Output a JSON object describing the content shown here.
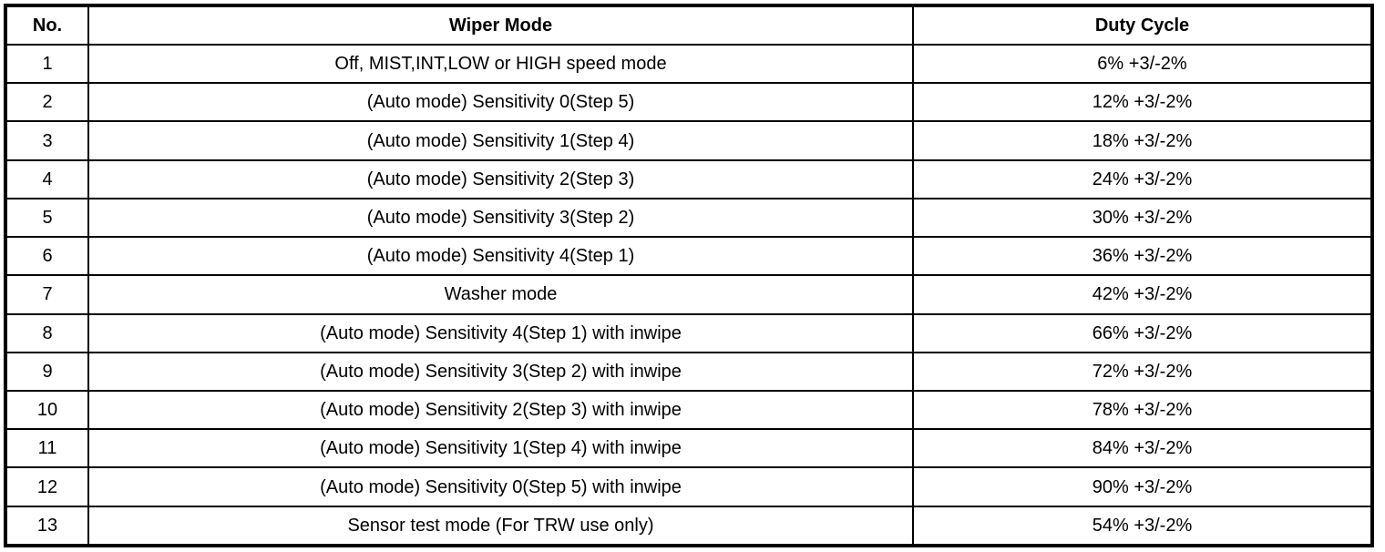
{
  "headers": {
    "no": "No.",
    "mode": "Wiper Mode",
    "duty": "Duty Cycle"
  },
  "rows": [
    {
      "no": "1",
      "mode": "Off, MIST,INT,LOW or HIGH speed mode",
      "duty": "6% +3/-2%"
    },
    {
      "no": "2",
      "mode": "(Auto mode) Sensitivity 0(Step 5)",
      "duty": "12% +3/-2%"
    },
    {
      "no": "3",
      "mode": "(Auto mode) Sensitivity 1(Step 4)",
      "duty": "18% +3/-2%"
    },
    {
      "no": "4",
      "mode": "(Auto mode) Sensitivity 2(Step 3)",
      "duty": "24% +3/-2%"
    },
    {
      "no": "5",
      "mode": "(Auto mode) Sensitivity 3(Step 2)",
      "duty": "30% +3/-2%"
    },
    {
      "no": "6",
      "mode": "(Auto mode) Sensitivity 4(Step 1)",
      "duty": "36% +3/-2%"
    },
    {
      "no": "7",
      "mode": "Washer mode",
      "duty": "42% +3/-2%"
    },
    {
      "no": "8",
      "mode": "(Auto mode) Sensitivity 4(Step 1) with inwipe",
      "duty": "66% +3/-2%"
    },
    {
      "no": "9",
      "mode": "(Auto mode) Sensitivity 3(Step 2) with inwipe",
      "duty": "72% +3/-2%"
    },
    {
      "no": "10",
      "mode": "(Auto mode) Sensitivity 2(Step 3) with inwipe",
      "duty": "78% +3/-2%"
    },
    {
      "no": "11",
      "mode": "(Auto mode) Sensitivity 1(Step 4) with inwipe",
      "duty": "84% +3/-2%"
    },
    {
      "no": "12",
      "mode": "(Auto mode) Sensitivity 0(Step 5) with inwipe",
      "duty": "90% +3/-2%"
    },
    {
      "no": "13",
      "mode": "Sensor test mode (For TRW use only)",
      "duty": "54% +3/-2%"
    }
  ]
}
